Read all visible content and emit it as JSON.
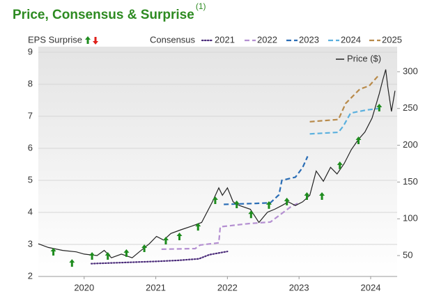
{
  "chart_data": {
    "type": "line",
    "title": "Price, Consensus & Surprise",
    "title_superscript": "(1)",
    "consensus_label": "Consensus",
    "xlim": [
      2019.36,
      2024.37
    ],
    "xticks": [
      2020,
      2021,
      2022,
      2023,
      2024
    ],
    "ylim": [
      2,
      9
    ],
    "yticks": [
      2,
      3,
      4,
      5,
      6,
      7,
      8,
      9
    ],
    "y2lim": [
      21.6,
      326.5
    ],
    "y2ticks": [
      50,
      100,
      150,
      200,
      250,
      300
    ],
    "grid": true,
    "surprises": {
      "name": "EPS Surprise",
      "color": "#1e8c1e",
      "down_color": "#e0201a",
      "x": [
        2019.57,
        2019.83,
        2020.11,
        2020.33,
        2020.59,
        2020.84,
        2021.14,
        2021.33,
        2021.59,
        2021.83,
        2022.13,
        2022.33,
        2022.58,
        2022.83,
        2023.11,
        2023.32,
        2023.57,
        2023.83,
        2024.12
      ],
      "values": [
        2.76,
        2.41,
        2.63,
        2.63,
        2.72,
        2.87,
        3.11,
        3.24,
        3.54,
        4.37,
        4.24,
        3.93,
        4.22,
        4.33,
        4.5,
        4.5,
        5.46,
        6.24,
        7.26
      ]
    },
    "series": [
      {
        "name": "2021",
        "color": "#4b2c7a",
        "dash": "dotted",
        "axis": "y",
        "x": [
          2020.1,
          2020.5,
          2021.0,
          2021.3,
          2021.6,
          2021.75,
          2022.0
        ],
        "values": [
          2.4,
          2.43,
          2.47,
          2.5,
          2.55,
          2.68,
          2.78
        ]
      },
      {
        "name": "2022",
        "color": "#b48fd1",
        "dash": "dashed",
        "axis": "y",
        "x": [
          2021.08,
          2021.55,
          2021.62,
          2021.88,
          2021.9,
          2022.3,
          2022.6,
          2022.9,
          2023.0
        ],
        "values": [
          2.85,
          2.87,
          2.98,
          3.05,
          3.55,
          3.65,
          3.7,
          4.2,
          4.3
        ]
      },
      {
        "name": "2023",
        "color": "#2a6db5",
        "dash": "dashed",
        "axis": "y",
        "x": [
          2021.95,
          2022.4,
          2022.6,
          2022.72,
          2022.76,
          2022.95,
          2023.05,
          2023.12
        ],
        "values": [
          4.25,
          4.28,
          4.3,
          4.55,
          5.0,
          5.1,
          5.4,
          5.75
        ]
      },
      {
        "name": "2024",
        "color": "#5ab0de",
        "dash": "dashed",
        "axis": "y",
        "x": [
          2023.15,
          2023.55,
          2023.62,
          2023.72,
          2023.95,
          2024.15
        ],
        "values": [
          6.45,
          6.5,
          6.7,
          7.1,
          7.2,
          7.25
        ]
      },
      {
        "name": "2025",
        "color": "#b88a4a",
        "dash": "dashed",
        "axis": "y",
        "x": [
          2023.15,
          2023.55,
          2023.65,
          2023.85,
          2023.98,
          2024.12
        ],
        "values": [
          6.83,
          6.9,
          7.4,
          7.85,
          7.95,
          8.3
        ]
      },
      {
        "name": "Price ($)",
        "color": "#222222",
        "dash": "solid",
        "axis": "y2",
        "x": [
          2019.36,
          2019.5,
          2019.7,
          2019.89,
          2020.0,
          2020.18,
          2020.28,
          2020.38,
          2020.52,
          2020.67,
          2020.77,
          2020.91,
          2021.01,
          2021.11,
          2021.21,
          2021.35,
          2021.5,
          2021.64,
          2021.79,
          2021.88,
          2021.93,
          2022.0,
          2022.08,
          2022.17,
          2022.32,
          2022.44,
          2022.56,
          2022.66,
          2022.76,
          2022.85,
          2022.95,
          2023.05,
          2023.15,
          2023.24,
          2023.34,
          2023.44,
          2023.53,
          2023.63,
          2023.73,
          2023.83,
          2023.92,
          2024.02,
          2024.12,
          2024.17,
          2024.21,
          2024.24,
          2024.29,
          2024.34
        ],
        "values": [
          66,
          61,
          57,
          55,
          52,
          50,
          57,
          47,
          52,
          47,
          55,
          66,
          76,
          71,
          80,
          85,
          90,
          95,
          123,
          142,
          132,
          142,
          123,
          118,
          113,
          95,
          109,
          113,
          118,
          123,
          118,
          123,
          132,
          165,
          151,
          170,
          161,
          175,
          194,
          208,
          218,
          237,
          270,
          289,
          303,
          279,
          246,
          274
        ]
      }
    ]
  }
}
